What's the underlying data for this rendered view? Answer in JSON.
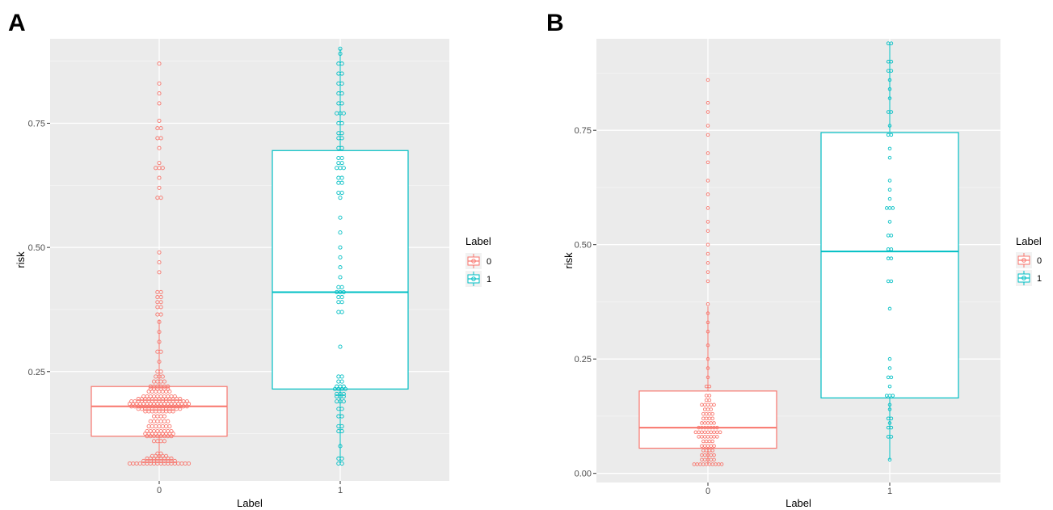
{
  "chart_data": [
    {
      "type": "boxplot",
      "panel": "A",
      "xlabel": "Label",
      "ylabel": "risk",
      "categories": [
        "0",
        "1"
      ],
      "ylim": [
        0.03,
        0.92
      ],
      "yticks": [
        0.25,
        0.5,
        0.75
      ],
      "ytick_labels": [
        "0.25",
        "0.50",
        "0.75"
      ],
      "grid": true,
      "legend": {
        "title": "Label",
        "entries": [
          "0",
          "1"
        ],
        "placement": "right"
      },
      "colors": {
        "0": "#F8766D",
        "1": "#00BFC4"
      },
      "boxes": [
        {
          "name": "0",
          "q1": 0.12,
          "median": 0.18,
          "q3": 0.22,
          "whisker_low": 0.065,
          "whisker_high": 0.355
        },
        {
          "name": "1",
          "q1": 0.215,
          "median": 0.41,
          "q3": 0.695,
          "whisker_low": 0.065,
          "whisker_high": 0.9
        }
      ],
      "dot_bands": [
        {
          "series": "0",
          "bands": [
            [
              0.065,
              18
            ],
            [
              0.07,
              10
            ],
            [
              0.075,
              8
            ],
            [
              0.08,
              5
            ],
            [
              0.085,
              2
            ],
            [
              0.11,
              4
            ],
            [
              0.12,
              8
            ],
            [
              0.125,
              9
            ],
            [
              0.13,
              8
            ],
            [
              0.14,
              7
            ],
            [
              0.15,
              6
            ],
            [
              0.16,
              4
            ],
            [
              0.17,
              9
            ],
            [
              0.175,
              13
            ],
            [
              0.18,
              17
            ],
            [
              0.185,
              18
            ],
            [
              0.19,
              17
            ],
            [
              0.195,
              13
            ],
            [
              0.2,
              10
            ],
            [
              0.21,
              7
            ],
            [
              0.215,
              6
            ],
            [
              0.22,
              6
            ],
            [
              0.23,
              4
            ],
            [
              0.24,
              3
            ],
            [
              0.25,
              2
            ],
            [
              0.27,
              1
            ],
            [
              0.29,
              2
            ],
            [
              0.31,
              1
            ],
            [
              0.33,
              1
            ],
            [
              0.35,
              1
            ],
            [
              0.365,
              2
            ],
            [
              0.38,
              2
            ],
            [
              0.39,
              2
            ],
            [
              0.4,
              2
            ],
            [
              0.41,
              2
            ],
            [
              0.45,
              1
            ],
            [
              0.47,
              1
            ],
            [
              0.49,
              1
            ],
            [
              0.6,
              2
            ],
            [
              0.62,
              1
            ],
            [
              0.64,
              1
            ],
            [
              0.66,
              3
            ],
            [
              0.67,
              1
            ],
            [
              0.7,
              1
            ],
            [
              0.72,
              2
            ],
            [
              0.74,
              2
            ],
            [
              0.755,
              1
            ],
            [
              0.79,
              1
            ],
            [
              0.81,
              1
            ],
            [
              0.83,
              1
            ],
            [
              0.87,
              1
            ]
          ]
        },
        {
          "series": "1",
          "bands": [
            [
              0.065,
              2
            ],
            [
              0.075,
              2
            ],
            [
              0.1,
              1
            ],
            [
              0.13,
              2
            ],
            [
              0.14,
              2
            ],
            [
              0.16,
              2
            ],
            [
              0.175,
              2
            ],
            [
              0.19,
              3
            ],
            [
              0.2,
              3
            ],
            [
              0.205,
              3
            ],
            [
              0.215,
              4
            ],
            [
              0.22,
              3
            ],
            [
              0.23,
              2
            ],
            [
              0.24,
              2
            ],
            [
              0.3,
              1
            ],
            [
              0.37,
              2
            ],
            [
              0.39,
              2
            ],
            [
              0.4,
              2
            ],
            [
              0.41,
              3
            ],
            [
              0.42,
              2
            ],
            [
              0.44,
              1
            ],
            [
              0.46,
              1
            ],
            [
              0.48,
              1
            ],
            [
              0.5,
              1
            ],
            [
              0.53,
              1
            ],
            [
              0.56,
              1
            ],
            [
              0.6,
              1
            ],
            [
              0.61,
              2
            ],
            [
              0.63,
              2
            ],
            [
              0.64,
              2
            ],
            [
              0.66,
              3
            ],
            [
              0.67,
              2
            ],
            [
              0.68,
              2
            ],
            [
              0.7,
              2
            ],
            [
              0.72,
              2
            ],
            [
              0.73,
              2
            ],
            [
              0.75,
              2
            ],
            [
              0.77,
              3
            ],
            [
              0.79,
              2
            ],
            [
              0.81,
              2
            ],
            [
              0.83,
              2
            ],
            [
              0.85,
              2
            ],
            [
              0.87,
              2
            ],
            [
              0.89,
              1
            ],
            [
              0.9,
              1
            ]
          ]
        }
      ]
    },
    {
      "type": "boxplot",
      "panel": "B",
      "xlabel": "Label",
      "ylabel": "risk",
      "categories": [
        "0",
        "1"
      ],
      "ylim": [
        -0.02,
        0.95
      ],
      "yticks": [
        0.0,
        0.25,
        0.5,
        0.75
      ],
      "ytick_labels": [
        "0.00",
        "0.25",
        "0.50",
        "0.75"
      ],
      "grid": true,
      "legend": {
        "title": "Label",
        "entries": [
          "0",
          "1"
        ],
        "placement": "right"
      },
      "colors": {
        "0": "#F8766D",
        "1": "#00BFC4"
      },
      "boxes": [
        {
          "name": "0",
          "q1": 0.055,
          "median": 0.1,
          "q3": 0.18,
          "whisker_low": 0.02,
          "whisker_high": 0.365
        },
        {
          "name": "1",
          "q1": 0.165,
          "median": 0.485,
          "q3": 0.745,
          "whisker_low": 0.03,
          "whisker_high": 0.94
        }
      ],
      "dot_bands": [
        {
          "series": "0",
          "bands": [
            [
              0.02,
              10
            ],
            [
              0.03,
              5
            ],
            [
              0.04,
              5
            ],
            [
              0.05,
              4
            ],
            [
              0.06,
              5
            ],
            [
              0.07,
              4
            ],
            [
              0.08,
              7
            ],
            [
              0.09,
              9
            ],
            [
              0.1,
              7
            ],
            [
              0.11,
              5
            ],
            [
              0.12,
              4
            ],
            [
              0.13,
              4
            ],
            [
              0.14,
              3
            ],
            [
              0.15,
              5
            ],
            [
              0.16,
              2
            ],
            [
              0.17,
              2
            ],
            [
              0.19,
              2
            ],
            [
              0.21,
              1
            ],
            [
              0.23,
              1
            ],
            [
              0.25,
              1
            ],
            [
              0.28,
              1
            ],
            [
              0.31,
              1
            ],
            [
              0.33,
              1
            ],
            [
              0.35,
              1
            ],
            [
              0.37,
              1
            ],
            [
              0.42,
              1
            ],
            [
              0.44,
              1
            ],
            [
              0.46,
              1
            ],
            [
              0.48,
              1
            ],
            [
              0.5,
              1
            ],
            [
              0.53,
              1
            ],
            [
              0.55,
              1
            ],
            [
              0.58,
              1
            ],
            [
              0.61,
              1
            ],
            [
              0.64,
              1
            ],
            [
              0.68,
              1
            ],
            [
              0.7,
              1
            ],
            [
              0.74,
              1
            ],
            [
              0.76,
              1
            ],
            [
              0.79,
              1
            ],
            [
              0.81,
              1
            ],
            [
              0.86,
              1
            ]
          ]
        },
        {
          "series": "1",
          "bands": [
            [
              0.03,
              1
            ],
            [
              0.08,
              2
            ],
            [
              0.1,
              2
            ],
            [
              0.11,
              1
            ],
            [
              0.12,
              2
            ],
            [
              0.14,
              1
            ],
            [
              0.15,
              1
            ],
            [
              0.17,
              3
            ],
            [
              0.19,
              1
            ],
            [
              0.21,
              2
            ],
            [
              0.23,
              1
            ],
            [
              0.25,
              1
            ],
            [
              0.36,
              1
            ],
            [
              0.42,
              2
            ],
            [
              0.47,
              2
            ],
            [
              0.49,
              2
            ],
            [
              0.52,
              2
            ],
            [
              0.55,
              1
            ],
            [
              0.58,
              3
            ],
            [
              0.6,
              1
            ],
            [
              0.62,
              1
            ],
            [
              0.64,
              1
            ],
            [
              0.69,
              1
            ],
            [
              0.71,
              1
            ],
            [
              0.74,
              2
            ],
            [
              0.76,
              1
            ],
            [
              0.79,
              2
            ],
            [
              0.82,
              1
            ],
            [
              0.84,
              1
            ],
            [
              0.86,
              1
            ],
            [
              0.88,
              2
            ],
            [
              0.9,
              2
            ],
            [
              0.94,
              2
            ]
          ]
        }
      ]
    }
  ]
}
